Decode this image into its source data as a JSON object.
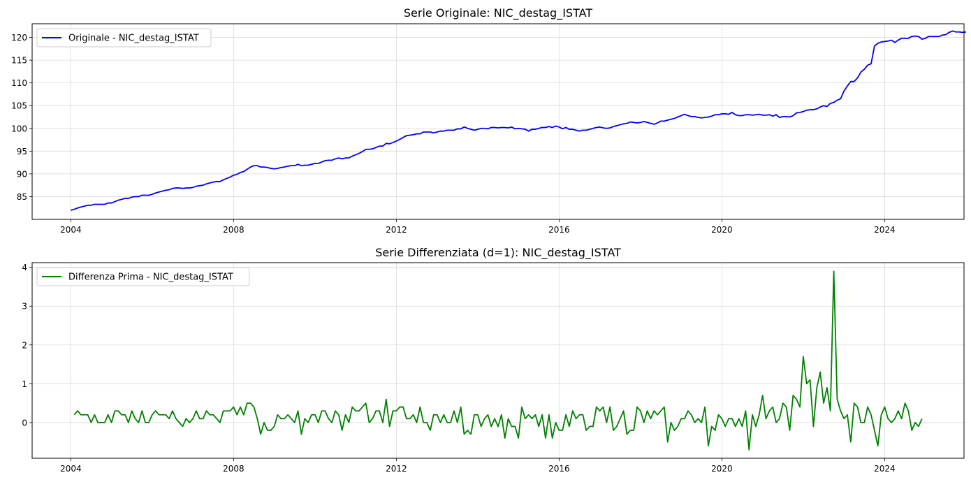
{
  "chart_data": [
    {
      "type": "line",
      "title": "Serie Originale: NIC_destag_ISTAT",
      "xlabel": "",
      "ylabel": "",
      "x_ticks": [
        "2004",
        "2008",
        "2012",
        "2016",
        "2020",
        "2024"
      ],
      "y_ticks": [
        "85",
        "90",
        "95",
        "100",
        "105",
        "110",
        "115",
        "120"
      ],
      "xlim": [
        2003.05,
        2025.95
      ],
      "ylim": [
        80.0,
        123.0
      ],
      "grid": true,
      "legend_position": "top-left",
      "series": [
        {
          "name": "Originale - NIC_destag_ISTAT",
          "color": "#0000ff",
          "start": 2004.0,
          "step": 0.083333,
          "values": [
            82.0,
            82.2,
            82.5,
            82.7,
            82.9,
            83.1,
            83.1,
            83.3,
            83.3,
            83.3,
            83.3,
            83.6,
            83.6,
            83.9,
            84.2,
            84.4,
            84.6,
            84.6,
            84.9,
            85.0,
            85.0,
            85.3,
            85.3,
            85.3,
            85.5,
            85.8,
            86.0,
            86.2,
            86.4,
            86.5,
            86.8,
            86.9,
            86.9,
            86.8,
            86.9,
            86.9,
            87.0,
            87.3,
            87.4,
            87.5,
            87.8,
            88.0,
            88.2,
            88.3,
            88.3,
            88.7,
            89.0,
            89.3,
            89.7,
            89.9,
            90.3,
            90.5,
            91.0,
            91.5,
            91.8,
            91.8,
            91.5,
            91.5,
            91.4,
            91.2,
            91.1,
            91.2,
            91.4,
            91.5,
            91.7,
            91.8,
            91.8,
            92.1,
            91.8,
            91.9,
            91.9,
            92.1,
            92.3,
            92.3,
            92.6,
            92.9,
            93.0,
            93.0,
            93.3,
            93.5,
            93.3,
            93.5,
            93.5,
            93.9,
            94.2,
            94.5,
            94.9,
            95.4,
            95.4,
            95.5,
            95.8,
            96.1,
            96.1,
            96.7,
            96.6,
            96.9,
            97.2,
            97.6,
            98.0,
            98.4,
            98.5,
            98.6,
            98.8,
            98.8,
            99.2,
            99.2,
            99.2,
            99.0,
            99.2,
            99.4,
            99.4,
            99.6,
            99.6,
            99.6,
            99.9,
            99.9,
            100.3,
            100.0,
            99.8,
            99.6,
            99.8,
            100.0,
            100.0,
            99.9,
            100.2,
            100.2,
            100.1,
            100.2,
            100.2,
            100.1,
            100.3,
            99.9,
            100.0,
            99.9,
            99.8,
            99.4,
            99.8,
            99.8,
            100.0,
            100.2,
            100.2,
            100.4,
            100.2,
            100.5,
            100.3,
            99.9,
            100.2,
            99.8,
            99.8,
            99.6,
            99.4,
            99.6,
            99.6,
            99.8,
            100.0,
            100.2,
            100.3,
            100.1,
            100.0,
            100.1,
            100.4,
            100.6,
            100.8,
            101.0,
            101.1,
            101.4,
            101.3,
            101.2,
            101.3,
            101.5,
            101.3,
            101.1,
            100.9,
            101.2,
            101.6,
            101.6,
            101.8,
            102.0,
            102.2,
            102.5,
            102.8,
            103.1,
            102.8,
            102.6,
            102.6,
            102.4,
            102.3,
            102.4,
            102.5,
            102.7,
            103.0,
            103.0,
            103.2,
            103.2,
            103.1,
            103.5,
            103.0,
            102.8,
            102.8,
            103.0,
            103.0,
            102.9,
            103.0,
            103.1,
            102.9,
            102.9,
            103.0,
            102.7,
            103.0,
            102.4,
            102.6,
            102.6,
            102.5,
            102.8,
            103.4,
            103.5,
            103.7,
            104.0,
            104.1,
            104.1,
            104.3,
            104.7,
            105.0,
            104.8,
            105.5,
            105.7,
            106.2,
            106.5,
            108.2,
            109.3,
            110.3,
            110.3,
            111.1,
            112.4,
            113.0,
            113.9,
            114.2,
            118.1,
            118.7,
            119.0,
            119.1,
            119.2,
            119.4,
            118.9,
            119.4,
            119.8,
            119.8,
            119.8,
            120.2,
            120.3,
            120.2,
            119.6,
            119.8,
            120.2,
            120.2,
            120.2,
            120.2,
            120.5,
            120.6,
            121.1,
            121.4,
            121.2,
            121.2,
            121.1,
            121.2
          ]
        }
      ]
    },
    {
      "type": "line",
      "title": "Serie Differenziata (d=1): NIC_destag_ISTAT",
      "xlabel": "",
      "ylabel": "",
      "x_ticks": [
        "2004",
        "2008",
        "2012",
        "2016",
        "2020",
        "2024"
      ],
      "y_ticks": [
        "0",
        "1",
        "2",
        "3",
        "4"
      ],
      "xlim": [
        2003.05,
        2025.95
      ],
      "ylim": [
        -0.92,
        4.12
      ],
      "grid": true,
      "legend_position": "top-left",
      "series": [
        {
          "name": "Differenza Prima - NIC_destag_ISTAT",
          "color": "#008000",
          "start": 2004.0833,
          "step": 0.083333,
          "values": [
            0.2,
            0.3,
            0.2,
            0.2,
            0.2,
            0.0,
            0.2,
            0.0,
            0.0,
            0.0,
            0.2,
            0.0,
            0.3,
            0.3,
            0.2,
            0.2,
            0.0,
            0.3,
            0.1,
            0.0,
            0.3,
            0.0,
            0.0,
            0.2,
            0.3,
            0.2,
            0.2,
            0.2,
            0.1,
            0.3,
            0.1,
            0.0,
            -0.1,
            0.1,
            0.0,
            0.1,
            0.3,
            0.1,
            0.1,
            0.3,
            0.2,
            0.2,
            0.1,
            0.0,
            0.3,
            0.3,
            0.3,
            0.4,
            0.2,
            0.4,
            0.2,
            0.5,
            0.5,
            0.4,
            0.1,
            -0.3,
            0.0,
            -0.2,
            -0.2,
            -0.1,
            0.2,
            0.1,
            0.1,
            0.2,
            0.1,
            0.0,
            0.3,
            -0.3,
            0.1,
            0.0,
            0.2,
            0.2,
            0.0,
            0.3,
            0.3,
            0.1,
            0.0,
            0.3,
            0.2,
            -0.2,
            0.2,
            0.0,
            0.4,
            0.3,
            0.3,
            0.4,
            0.5,
            0.0,
            0.1,
            0.3,
            0.3,
            0.0,
            0.6,
            -0.1,
            0.3,
            0.3,
            0.4,
            0.4,
            0.1,
            0.1,
            0.2,
            0.0,
            0.4,
            0.0,
            0.0,
            -0.2,
            0.2,
            0.2,
            0.0,
            0.2,
            0.0,
            0.0,
            0.3,
            0.0,
            0.4,
            -0.3,
            -0.2,
            -0.3,
            0.2,
            0.2,
            -0.1,
            0.1,
            0.2,
            -0.1,
            0.1,
            -0.1,
            0.2,
            -0.4,
            0.1,
            -0.1,
            -0.1,
            -0.4,
            0.4,
            0.1,
            0.2,
            0.1,
            0.2,
            -0.1,
            0.2,
            -0.4,
            0.2,
            -0.4,
            0.0,
            -0.2,
            -0.2,
            0.2,
            -0.1,
            0.3,
            0.1,
            0.2,
            0.2,
            -0.2,
            -0.1,
            -0.1,
            0.4,
            0.3,
            0.4,
            0.0,
            0.4,
            -0.2,
            -0.1,
            0.1,
            0.3,
            -0.3,
            -0.2,
            -0.2,
            0.4,
            0.3,
            0.0,
            0.3,
            0.1,
            0.3,
            0.2,
            0.3,
            0.4,
            -0.5,
            0.0,
            -0.2,
            -0.1,
            0.1,
            0.1,
            0.3,
            0.2,
            0.0,
            0.1,
            0.0,
            0.4,
            -0.6,
            -0.1,
            -0.2,
            0.2,
            0.1,
            -0.1,
            0.1,
            0.1,
            -0.1,
            0.1,
            -0.1,
            0.3,
            -0.7,
            0.2,
            -0.1,
            0.2,
            0.7,
            0.1,
            0.3,
            0.4,
            0.0,
            0.1,
            0.5,
            0.4,
            -0.2,
            0.7,
            0.6,
            0.4,
            1.7,
            1.0,
            1.1,
            -0.1,
            0.9,
            1.3,
            0.5,
            0.9,
            0.3,
            3.9,
            0.6,
            0.3,
            0.1,
            0.2,
            -0.5,
            0.5,
            0.4,
            0.0,
            0.0,
            0.4,
            0.2,
            -0.2,
            -0.6,
            0.2,
            0.4,
            0.1,
            0.0,
            0.1,
            0.3,
            0.1,
            0.5,
            0.3,
            -0.2,
            0.0,
            -0.1,
            0.1
          ]
        }
      ]
    }
  ]
}
